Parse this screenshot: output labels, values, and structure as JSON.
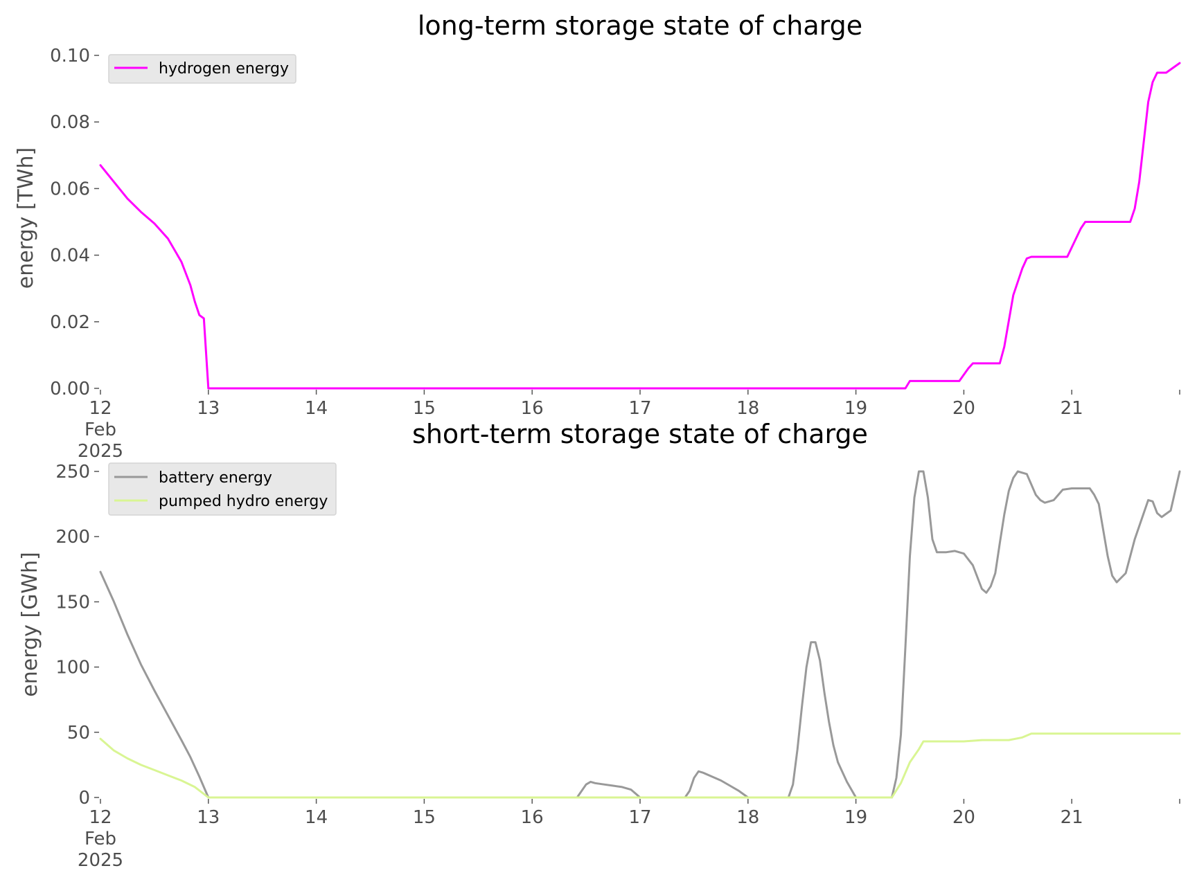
{
  "chart_data": [
    {
      "type": "line",
      "title": "long-term storage state of charge",
      "ylabel": "energy [TWh]",
      "xlabel": "",
      "ylim": [
        0,
        0.1
      ],
      "yticks": [
        "0.00",
        "0.02",
        "0.04",
        "0.06",
        "0.08",
        "0.10"
      ],
      "ytick_values": [
        0,
        0.02,
        0.04,
        0.06,
        0.08,
        0.1
      ],
      "xlim": [
        "2025-02-12",
        "2025-02-22"
      ],
      "xtick_labels": [
        {
          "day": 12,
          "lines": [
            "12",
            "Feb",
            "2025"
          ]
        },
        {
          "day": 13,
          "lines": [
            "13"
          ]
        },
        {
          "day": 14,
          "lines": [
            "14"
          ]
        },
        {
          "day": 15,
          "lines": [
            "15"
          ]
        },
        {
          "day": 16,
          "lines": [
            "16"
          ]
        },
        {
          "day": 17,
          "lines": [
            "17"
          ]
        },
        {
          "day": 18,
          "lines": [
            "18"
          ]
        },
        {
          "day": 19,
          "lines": [
            "19"
          ]
        },
        {
          "day": 20,
          "lines": [
            "20"
          ]
        },
        {
          "day": 21,
          "lines": [
            "21"
          ]
        },
        {
          "day": 22,
          "lines": [
            ""
          ]
        }
      ],
      "legend_position": "top-left",
      "grid": false,
      "series": [
        {
          "name": "hydrogen energy",
          "color": "#ff00ff",
          "x": [
            "2025-02-12 00:00",
            "2025-02-12 03:00",
            "2025-02-12 06:00",
            "2025-02-12 09:00",
            "2025-02-12 12:00",
            "2025-02-12 15:00",
            "2025-02-12 18:00",
            "2025-02-12 20:00",
            "2025-02-12 21:00",
            "2025-02-12 22:00",
            "2025-02-12 23:00",
            "2025-02-13 00:00",
            "2025-02-19 11:00",
            "2025-02-19 12:00",
            "2025-02-19 23:00",
            "2025-02-20 01:00",
            "2025-02-20 02:00",
            "2025-02-20 05:00",
            "2025-02-20 08:00",
            "2025-02-20 09:00",
            "2025-02-20 11:00",
            "2025-02-20 13:00",
            "2025-02-20 14:00",
            "2025-02-20 15:00",
            "2025-02-20 23:00",
            "2025-02-21 02:00",
            "2025-02-21 03:00",
            "2025-02-21 13:00",
            "2025-02-21 14:00",
            "2025-02-21 15:00",
            "2025-02-21 17:00",
            "2025-02-21 18:00",
            "2025-02-21 19:00",
            "2025-02-21 21:00",
            "2025-02-22 00:00"
          ],
          "y": [
            0.067,
            0.062,
            0.057,
            0.053,
            0.0495,
            0.045,
            0.038,
            0.031,
            0.026,
            0.022,
            0.021,
            0.0,
            0.0,
            0.0022,
            0.0022,
            0.006,
            0.0075,
            0.0075,
            0.0075,
            0.0125,
            0.028,
            0.036,
            0.039,
            0.0395,
            0.0395,
            0.048,
            0.05,
            0.05,
            0.054,
            0.062,
            0.086,
            0.092,
            0.0948,
            0.0948,
            0.0977
          ]
        }
      ]
    },
    {
      "type": "line",
      "title": "short-term storage state of charge",
      "ylabel": "energy [GWh]",
      "xlabel": "",
      "ylim": [
        0,
        250
      ],
      "yticks": [
        "0",
        "50",
        "100",
        "150",
        "200",
        "250"
      ],
      "ytick_values": [
        0,
        50,
        100,
        150,
        200,
        250
      ],
      "xlim": [
        "2025-02-12",
        "2025-02-22"
      ],
      "xtick_labels": [
        {
          "day": 12,
          "lines": [
            "12",
            "Feb",
            "2025"
          ]
        },
        {
          "day": 13,
          "lines": [
            "13"
          ]
        },
        {
          "day": 14,
          "lines": [
            "14"
          ]
        },
        {
          "day": 15,
          "lines": [
            "15"
          ]
        },
        {
          "day": 16,
          "lines": [
            "16"
          ]
        },
        {
          "day": 17,
          "lines": [
            "17"
          ]
        },
        {
          "day": 18,
          "lines": [
            "18"
          ]
        },
        {
          "day": 19,
          "lines": [
            "19"
          ]
        },
        {
          "day": 20,
          "lines": [
            "20"
          ]
        },
        {
          "day": 21,
          "lines": [
            "21"
          ]
        },
        {
          "day": 22,
          "lines": [
            ""
          ]
        }
      ],
      "legend_position": "top-left",
      "grid": false,
      "series": [
        {
          "name": "battery energy",
          "color": "#999999",
          "x": [
            "2025-02-12 00:00",
            "2025-02-12 03:00",
            "2025-02-12 06:00",
            "2025-02-12 09:00",
            "2025-02-12 12:00",
            "2025-02-12 15:00",
            "2025-02-12 18:00",
            "2025-02-12 20:00",
            "2025-02-12 22:00",
            "2025-02-13 00:00",
            "2025-02-16 10:00",
            "2025-02-16 12:00",
            "2025-02-16 13:00",
            "2025-02-16 14:00",
            "2025-02-16 16:00",
            "2025-02-16 18:00",
            "2025-02-16 20:00",
            "2025-02-16 22:00",
            "2025-02-17 00:00",
            "2025-02-17 10:00",
            "2025-02-17 11:00",
            "2025-02-17 12:00",
            "2025-02-17 13:00",
            "2025-02-17 14:00",
            "2025-02-17 16:00",
            "2025-02-17 18:00",
            "2025-02-17 20:00",
            "2025-02-17 22:00",
            "2025-02-18 00:00",
            "2025-02-18 09:00",
            "2025-02-18 10:00",
            "2025-02-18 11:00",
            "2025-02-18 12:00",
            "2025-02-18 13:00",
            "2025-02-18 14:00",
            "2025-02-18 15:00",
            "2025-02-18 16:00",
            "2025-02-18 17:00",
            "2025-02-18 18:00",
            "2025-02-18 19:00",
            "2025-02-18 20:00",
            "2025-02-18 22:00",
            "2025-02-19 00:00",
            "2025-02-19 08:00",
            "2025-02-19 09:00",
            "2025-02-19 10:00",
            "2025-02-19 11:00",
            "2025-02-19 12:00",
            "2025-02-19 13:00",
            "2025-02-19 14:00",
            "2025-02-19 15:00",
            "2025-02-19 16:00",
            "2025-02-19 17:00",
            "2025-02-19 18:00",
            "2025-02-19 20:00",
            "2025-02-19 22:00",
            "2025-02-20 00:00",
            "2025-02-20 02:00",
            "2025-02-20 04:00",
            "2025-02-20 05:00",
            "2025-02-20 06:00",
            "2025-02-20 07:00",
            "2025-02-20 08:00",
            "2025-02-20 09:00",
            "2025-02-20 10:00",
            "2025-02-20 11:00",
            "2025-02-20 12:00",
            "2025-02-20 14:00",
            "2025-02-20 15:00",
            "2025-02-20 16:00",
            "2025-02-20 17:00",
            "2025-02-20 18:00",
            "2025-02-20 20:00",
            "2025-02-20 22:00",
            "2025-02-21 00:00",
            "2025-02-21 04:00",
            "2025-02-21 05:00",
            "2025-02-21 06:00",
            "2025-02-21 08:00",
            "2025-02-21 09:00",
            "2025-02-21 10:00",
            "2025-02-21 12:00",
            "2025-02-21 14:00",
            "2025-02-21 16:00",
            "2025-02-21 17:00",
            "2025-02-21 18:00",
            "2025-02-21 19:00",
            "2025-02-21 20:00",
            "2025-02-21 22:00",
            "2025-02-22 00:00"
          ],
          "y": [
            173,
            150,
            125,
            102,
            82,
            63,
            44,
            31,
            16,
            0,
            0,
            10,
            12,
            11,
            10,
            9,
            8,
            6,
            0,
            0,
            5,
            15,
            20,
            19,
            16,
            13,
            9,
            5,
            0,
            0,
            10,
            37,
            70,
            100,
            119,
            119,
            105,
            80,
            58,
            40,
            27,
            12,
            0,
            0,
            15,
            48,
            115,
            185,
            230,
            250,
            250,
            230,
            198,
            188,
            188,
            189,
            187,
            178,
            160,
            157,
            162,
            172,
            195,
            217,
            235,
            245,
            250,
            248,
            240,
            232,
            228,
            226,
            228,
            236,
            237,
            237,
            232,
            225,
            185,
            170,
            165,
            172,
            198,
            218,
            228,
            227,
            218,
            215,
            220,
            250
          ]
        },
        {
          "name": "pumped hydro energy",
          "color": "#d9f593",
          "x": [
            "2025-02-12 00:00",
            "2025-02-12 03:00",
            "2025-02-12 06:00",
            "2025-02-12 09:00",
            "2025-02-12 12:00",
            "2025-02-12 15:00",
            "2025-02-12 18:00",
            "2025-02-12 21:00",
            "2025-02-13 00:00",
            "2025-02-19 08:00",
            "2025-02-19 10:00",
            "2025-02-19 12:00",
            "2025-02-19 14:00",
            "2025-02-19 15:00",
            "2025-02-19 18:00",
            "2025-02-20 00:00",
            "2025-02-20 04:00",
            "2025-02-20 10:00",
            "2025-02-20 13:00",
            "2025-02-20 15:00",
            "2025-02-21 00:00",
            "2025-02-22 00:00"
          ],
          "y": [
            45,
            36,
            30,
            25,
            21,
            17,
            13,
            8,
            0,
            0,
            11,
            27,
            37,
            43,
            43,
            43,
            44,
            44,
            46,
            49,
            49,
            49
          ]
        }
      ]
    }
  ]
}
